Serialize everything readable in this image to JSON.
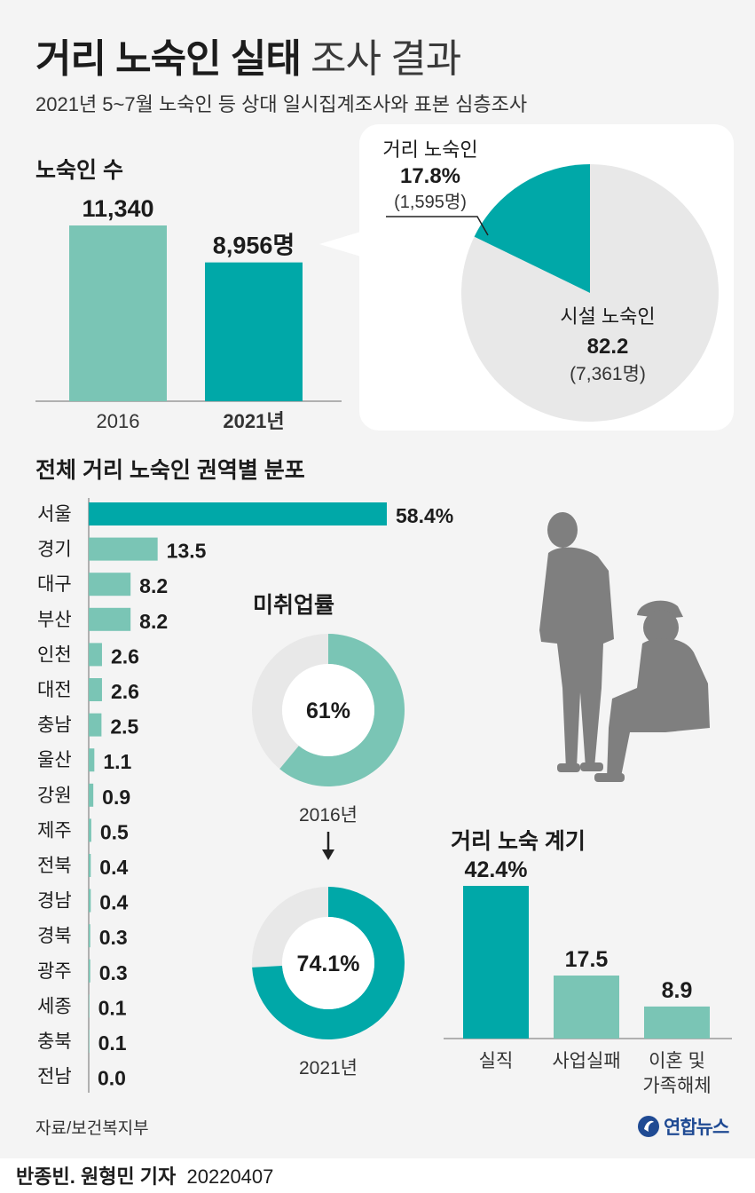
{
  "header": {
    "title_bold": "거리 노숙인 실태",
    "title_light": "조사 결과",
    "subtitle": "2021년 5~7월 노숙인 등 상대 일시집계조사와 표본 심층조사"
  },
  "footer": {
    "source": "자료/보건복지부",
    "logo_text": "연합뉴스",
    "reporters": "반종빈. 원형민 기자",
    "date": "20220407"
  },
  "colors": {
    "teal_dark": "#00a8a8",
    "teal_light": "#7ac5b5",
    "grey_light": "#e8e8e8",
    "silhouette": "#7f7f7f"
  },
  "icons": [
    "people-silhouette-icon",
    "yonhap-logo-icon",
    "down-arrow-icon"
  ],
  "chart_data": [
    {
      "id": "homeless_count",
      "type": "bar",
      "title": "노숙인 수",
      "categories": [
        "2016",
        "2021년"
      ],
      "values": [
        11340,
        8956
      ],
      "value_labels": [
        "11,340",
        "8,956명"
      ],
      "colors": [
        "#7ac5b5",
        "#00a8a8"
      ]
    },
    {
      "id": "street_vs_facility",
      "type": "pie",
      "slices": [
        {
          "label": "거리 노숙인",
          "value": 17.8,
          "value_label": "17.8%",
          "count_label": "(1,595명)",
          "color": "#00a8a8"
        },
        {
          "label": "시설 노숙인",
          "value": 82.2,
          "value_label": "82.2",
          "count_label": "(7,361명)",
          "color": "#e8e8e8"
        }
      ]
    },
    {
      "id": "regional_distribution",
      "type": "bar",
      "orientation": "horizontal",
      "title": "전체 거리 노숙인 권역별 분포",
      "categories": [
        "서울",
        "경기",
        "대구",
        "부산",
        "인천",
        "대전",
        "충남",
        "울산",
        "강원",
        "제주",
        "전북",
        "경남",
        "경북",
        "광주",
        "세종",
        "충북",
        "전남"
      ],
      "values": [
        58.4,
        13.5,
        8.2,
        8.2,
        2.6,
        2.6,
        2.5,
        1.1,
        0.9,
        0.5,
        0.4,
        0.4,
        0.3,
        0.3,
        0.1,
        0.1,
        0.0
      ],
      "value_labels": [
        "58.4%",
        "13.5",
        "8.2",
        "8.2",
        "2.6",
        "2.6",
        "2.5",
        "1.1",
        "0.9",
        "0.5",
        "0.4",
        "0.4",
        "0.3",
        "0.3",
        "0.1",
        "0.1",
        "0.0"
      ]
    },
    {
      "id": "unemployment_rate",
      "type": "pie",
      "title": "미취업률",
      "donuts": [
        {
          "year_label": "2016년",
          "value": 61,
          "value_label": "61%",
          "color": "#7ac5b5"
        },
        {
          "year_label": "2021년",
          "value": 74.1,
          "value_label": "74.1%",
          "color": "#00a8a8"
        }
      ]
    },
    {
      "id": "reasons",
      "type": "bar",
      "title": "거리 노숙 계기",
      "categories": [
        "실직",
        "사업실패",
        "이혼 및\n가족해체"
      ],
      "values": [
        42.4,
        17.5,
        8.9
      ],
      "value_labels": [
        "42.4%",
        "17.5",
        "8.9"
      ],
      "colors": [
        "#00a8a8",
        "#7ac5b5",
        "#7ac5b5"
      ]
    }
  ]
}
